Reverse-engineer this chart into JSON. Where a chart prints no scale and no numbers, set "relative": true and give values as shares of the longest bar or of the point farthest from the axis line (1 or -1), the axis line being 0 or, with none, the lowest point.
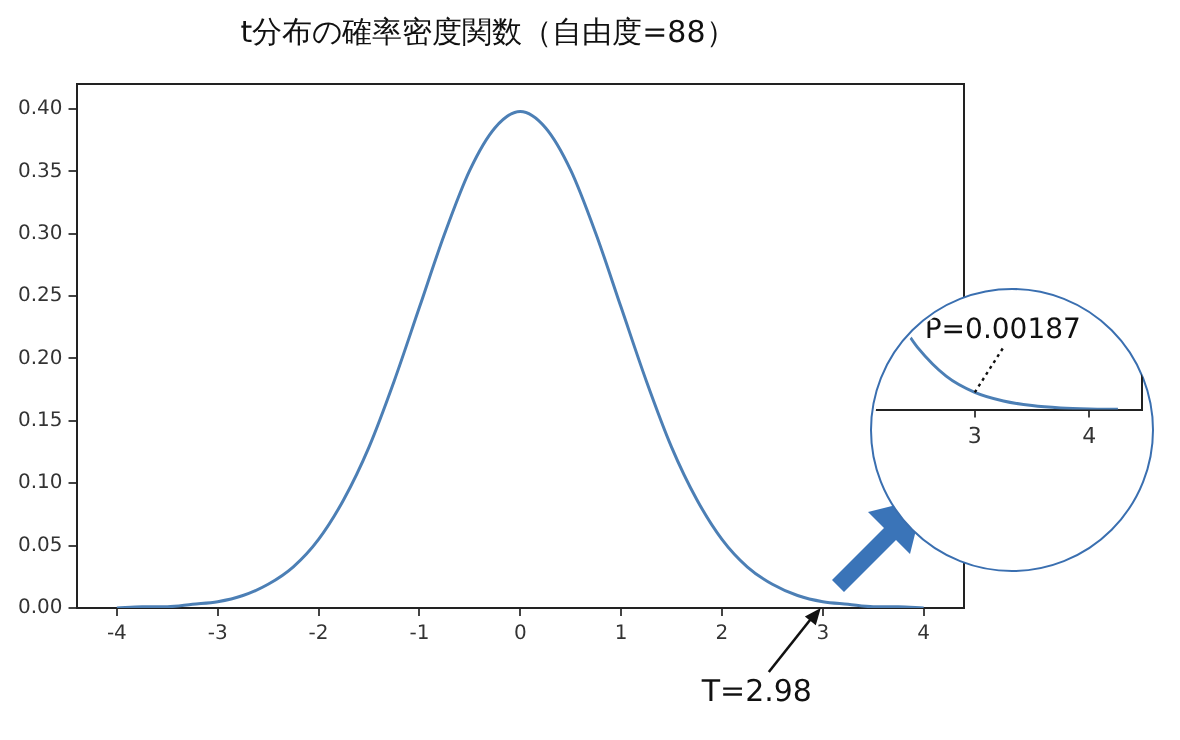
{
  "chart_data": [
    {
      "type": "line",
      "title": "t分布の確率密度関数（自由度=88）",
      "x": [
        -4,
        -3.75,
        -3.5,
        -3.25,
        -3,
        -2.75,
        -2.5,
        -2.25,
        -2,
        -1.75,
        -1.5,
        -1.25,
        -1,
        -0.75,
        -0.5,
        -0.25,
        0,
        0.25,
        0.5,
        0.75,
        1,
        1.25,
        1.5,
        1.75,
        2,
        2.25,
        2.5,
        2.75,
        3,
        3.25,
        3.5,
        3.75,
        4
      ],
      "series": [
        {
          "color": "#4c7fb5",
          "values": [
            0.0,
            0.001,
            0.001,
            0.003,
            0.005,
            0.01,
            0.019,
            0.033,
            0.055,
            0.087,
            0.129,
            0.182,
            0.241,
            0.3,
            0.351,
            0.385,
            0.398,
            0.385,
            0.351,
            0.3,
            0.241,
            0.182,
            0.129,
            0.087,
            0.055,
            0.033,
            0.019,
            0.01,
            0.005,
            0.003,
            0.001,
            0.001,
            0.0
          ]
        }
      ],
      "xlim": [
        -4.4,
        4.4
      ],
      "xticks": [
        -4,
        -3,
        -2,
        -1,
        0,
        1,
        2,
        3,
        4
      ],
      "ylim": [
        0,
        0.42
      ],
      "yticks": [
        {
          "value": 0,
          "label": "0.00"
        },
        {
          "value": 0.05,
          "label": "0.05"
        },
        {
          "value": 0.1,
          "label": "0.10"
        },
        {
          "value": 0.15,
          "label": "0.15"
        },
        {
          "value": 0.2,
          "label": "0.20"
        },
        {
          "value": 0.25,
          "label": "0.25"
        },
        {
          "value": 0.3,
          "label": "0.30"
        },
        {
          "value": 0.35,
          "label": "0.35"
        },
        {
          "value": 0.4,
          "label": "0.40"
        }
      ],
      "grid": false,
      "legend": false,
      "annotations": [
        {
          "text": "T=2.98",
          "x": 2.98,
          "y": 0
        }
      ]
    },
    {
      "type": "line",
      "relative": true,
      "x": [
        2.4,
        2.5,
        2.75,
        3,
        3.25,
        3.5,
        3.75,
        4,
        4.25
      ],
      "series": [
        {
          "color": "#4c7fb5",
          "values": [
            1,
            0.794,
            0.427,
            0.22,
            0.11,
            0.051,
            0.021,
            0.008,
            0.004
          ]
        }
      ],
      "xlim": [
        2.12,
        4.46
      ],
      "xticks": [
        3,
        4
      ],
      "tick_labels": "x",
      "grid": false,
      "legend": false,
      "annotations": [
        {
          "text": "P=0.00187",
          "x": 3,
          "y": 0.22
        }
      ]
    }
  ]
}
